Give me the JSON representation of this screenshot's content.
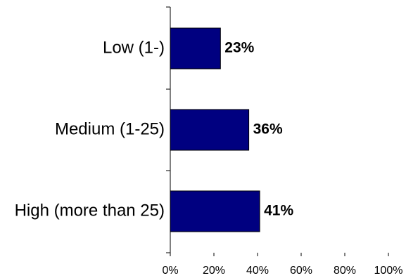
{
  "chart_data": {
    "type": "bar",
    "orientation": "horizontal",
    "categories": [
      "Low (1-)",
      "Medium (1-25)",
      "High (more than 25)"
    ],
    "values": [
      23,
      36,
      41
    ],
    "data_labels": [
      "23%",
      "36%",
      "41%"
    ],
    "xlim": [
      0,
      100
    ],
    "x_ticks": [
      0,
      20,
      40,
      60,
      80,
      100
    ],
    "x_tick_labels": [
      "0%",
      "20%",
      "40%",
      "60%",
      "80%",
      "100%"
    ],
    "grid": false,
    "legend": "none",
    "bar_color": "#000080"
  }
}
